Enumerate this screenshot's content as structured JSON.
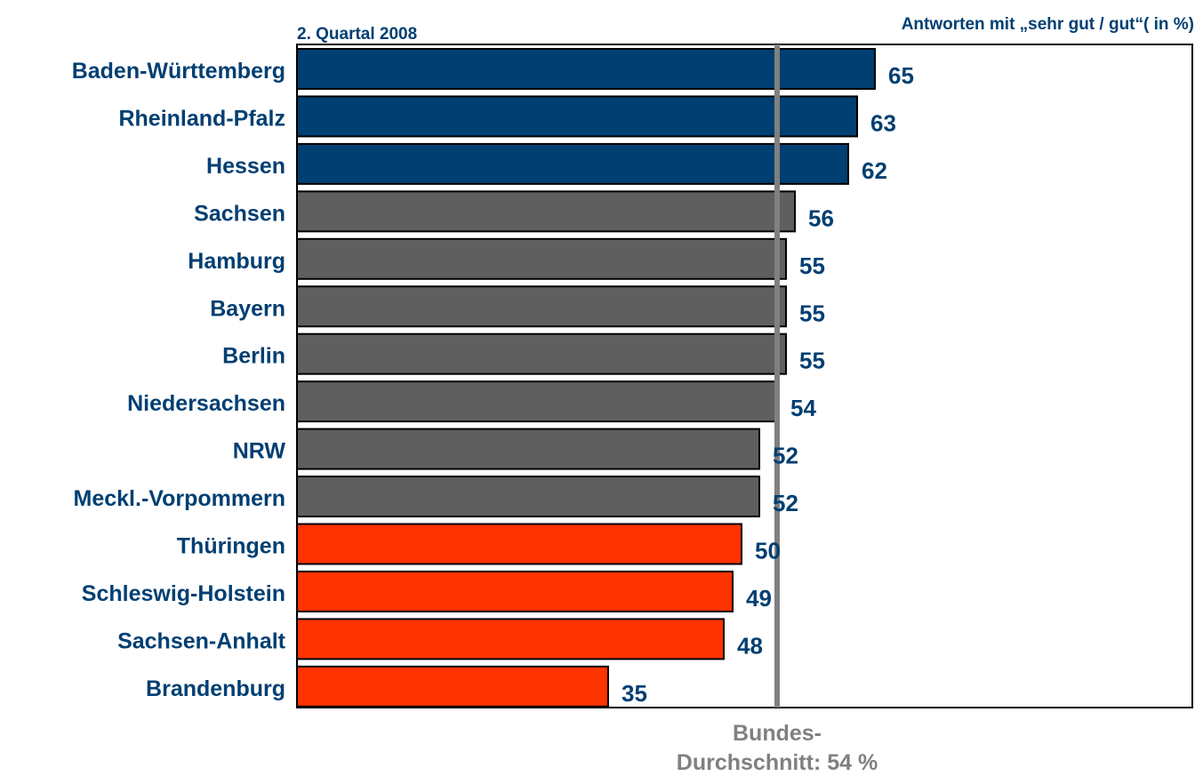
{
  "chart_data": {
    "type": "bar",
    "orientation": "horizontal",
    "subtitle": "2. Quartal 2008",
    "title": "Antworten mit „sehr gut / gut“( in %)",
    "categories": [
      "Baden-Württemberg",
      "Rheinland-Pfalz",
      "Hessen",
      "Sachsen",
      "Hamburg",
      "Bayern",
      "Berlin",
      "Niedersachsen",
      "NRW",
      "Meckl.-Vorpommern",
      "Thüringen",
      "Schleswig-Holstein",
      "Sachsen-Anhalt",
      "Brandenburg"
    ],
    "values": [
      65,
      63,
      62,
      56,
      55,
      55,
      55,
      54,
      52,
      52,
      50,
      49,
      48,
      35
    ],
    "value_labels": [
      "65",
      "63",
      "62",
      "56",
      "55",
      "55",
      "55",
      "54",
      "52",
      "52",
      "50",
      "49",
      "48",
      "35"
    ],
    "bar_colors": [
      "#003F72",
      "#003F72",
      "#003F72",
      "#5F5F5F",
      "#5F5F5F",
      "#5F5F5F",
      "#5F5F5F",
      "#5F5F5F",
      "#5F5F5F",
      "#5F5F5F",
      "#FF3300",
      "#FF3300",
      "#FF3300",
      "#FF3300"
    ],
    "xlim": [
      0,
      100
    ],
    "average": {
      "value": 54,
      "label_line1": "Bundes-",
      "label_line2": "Durchschnitt: 54 %",
      "color": "#808080"
    },
    "grid": false,
    "legend": "none"
  },
  "colors": {
    "label_text": "#003F72",
    "average_text": "#808080",
    "frame": "#000000"
  }
}
